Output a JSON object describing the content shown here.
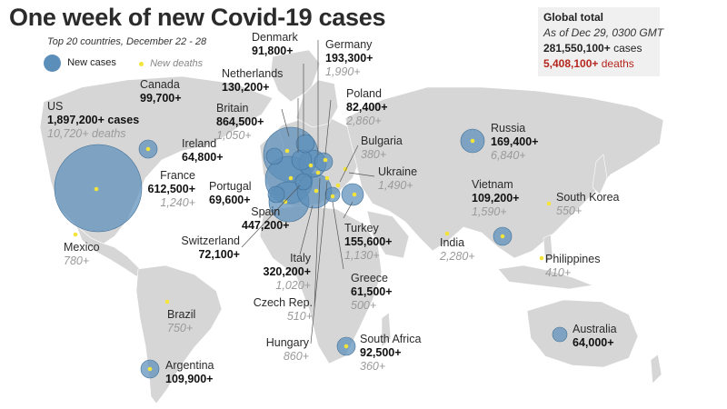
{
  "title": "One week of new Covid-19 cases",
  "subtitle": "Top 20 countries, December 22 - 28",
  "legend": {
    "cases": "New cases",
    "deaths": "New deaths"
  },
  "global": {
    "title": "Global total",
    "asof": "As of Dec 29, 0300 GMT",
    "cases_value": "281,550,100+",
    "cases_word": "cases",
    "deaths_value": "5,408,100+",
    "deaths_word": "deaths"
  },
  "colors": {
    "bubble": "#5b8fba",
    "death_dot": "#f3e43a",
    "land": "#d6d6d6",
    "deaths_total": "#b5261e"
  },
  "countries": {
    "us": {
      "name": "US",
      "cases": "1,897,200+ cases",
      "deaths": "10,720+ deaths"
    },
    "canada": {
      "name": "Canada",
      "cases": "99,700+"
    },
    "mexico": {
      "name": "Mexico",
      "deaths": "780+"
    },
    "brazil": {
      "name": "Brazil",
      "deaths": "750+"
    },
    "argentina": {
      "name": "Argentina",
      "cases": "109,900+"
    },
    "france": {
      "name": "France",
      "cases": "612,500+",
      "deaths": "1,240+"
    },
    "ireland": {
      "name": "Ireland",
      "cases": "64,800+"
    },
    "britain": {
      "name": "Britain",
      "cases": "864,500+",
      "deaths": "1,050+"
    },
    "netherlands": {
      "name": "Netherlands",
      "cases": "130,200+"
    },
    "denmark": {
      "name": "Denmark",
      "cases": "91,800+"
    },
    "germany": {
      "name": "Germany",
      "cases": "193,300+",
      "deaths": "1,990+"
    },
    "poland": {
      "name": "Poland",
      "cases": "82,400+",
      "deaths": "2,860+"
    },
    "bulgaria": {
      "name": "Bulgaria",
      "deaths": "380+"
    },
    "ukraine": {
      "name": "Ukraine",
      "deaths": "1,490+"
    },
    "portugal": {
      "name": "Portugal",
      "cases": "69,600+"
    },
    "spain": {
      "name": "Spain",
      "cases": "447,200+"
    },
    "switzerland": {
      "name": "Switzerland",
      "cases": "72,100+"
    },
    "italy": {
      "name": "Italy",
      "cases": "320,200+",
      "deaths": "1,020+"
    },
    "czech": {
      "name": "Czech Rep.",
      "deaths": "510+"
    },
    "hungary": {
      "name": "Hungary",
      "deaths": "860+"
    },
    "turkey": {
      "name": "Turkey",
      "cases": "155,600+",
      "deaths": "1,130+"
    },
    "greece": {
      "name": "Greece",
      "cases": "61,500+",
      "deaths": "500+"
    },
    "southafrica": {
      "name": "South Africa",
      "cases": "92,500+",
      "deaths": "360+"
    },
    "russia": {
      "name": "Russia",
      "cases": "169,400+",
      "deaths": "6,840+"
    },
    "vietnam": {
      "name": "Vietnam",
      "cases": "109,200+",
      "deaths": "1,590+"
    },
    "india": {
      "name": "India",
      "deaths": "2,280+"
    },
    "southkorea": {
      "name": "South Korea",
      "deaths": "550+"
    },
    "philippines": {
      "name": "Philippines",
      "deaths": "410+"
    },
    "australia": {
      "name": "Australia",
      "cases": "64,000+"
    }
  }
}
